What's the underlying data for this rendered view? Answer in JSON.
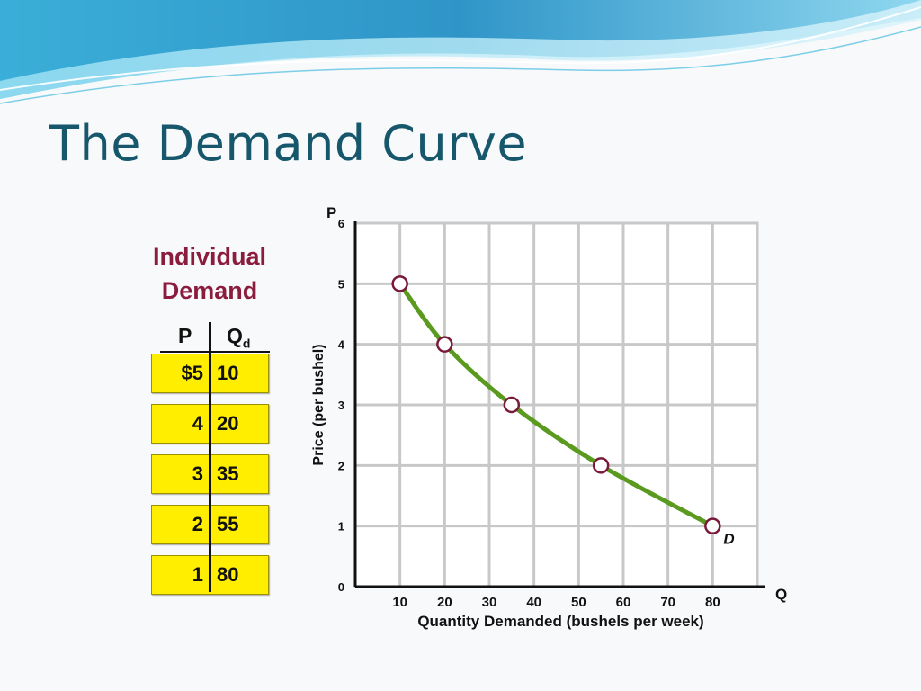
{
  "slide": {
    "title": "The Demand Curve"
  },
  "table": {
    "title_lines": [
      "Individual",
      "Demand"
    ],
    "col_p": "P",
    "col_q": "Q",
    "col_q_sub": "d",
    "rows": [
      {
        "p": "$5",
        "q": "10"
      },
      {
        "p": "4",
        "q": "20"
      },
      {
        "p": "3",
        "q": "35"
      },
      {
        "p": "2",
        "q": "55"
      },
      {
        "p": "1",
        "q": "80"
      }
    ]
  },
  "colors": {
    "title": "#17576b",
    "table_heading": "#8c1c3e",
    "row_fill": "#ffee00",
    "curve": "#5a9a1e",
    "marker_edge": "#7a1a3a",
    "grid_fill": "#ffffff",
    "grid_line": "#c8c8c8"
  },
  "chart_data": {
    "type": "line",
    "title": "",
    "xlabel": "Quantity Demanded (bushels per week)",
    "ylabel": "Price (per bushel)",
    "x_axis_letter": "Q",
    "y_axis_letter": "P",
    "xlim": [
      0,
      90
    ],
    "ylim": [
      0,
      6
    ],
    "x_ticks": [
      10,
      20,
      30,
      40,
      50,
      60,
      70,
      80
    ],
    "y_ticks": [
      0,
      1,
      2,
      3,
      4,
      5,
      6
    ],
    "grid": true,
    "series": [
      {
        "name": "D",
        "x": [
          10,
          20,
          35,
          55,
          80
        ],
        "y": [
          5,
          4,
          3,
          2,
          1
        ]
      }
    ]
  }
}
